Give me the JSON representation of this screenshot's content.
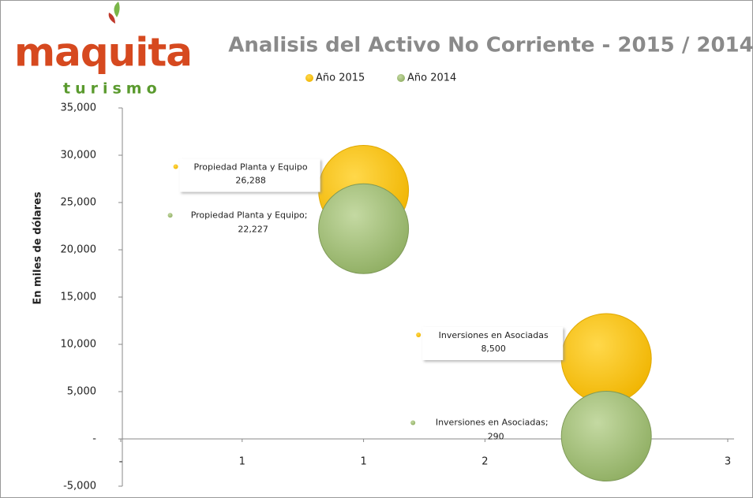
{
  "logo": {
    "name": "maquita",
    "tagline": "turismo"
  },
  "chart_data": {
    "type": "bubble",
    "title": "Analisis del Activo No Corriente  - 2015 / 2014",
    "ylabel": "En miles de dólares",
    "x": [
      1,
      2
    ],
    "series": [
      {
        "name": "Año 2015",
        "color": "#f5c000",
        "values": [
          26288,
          8500
        ],
        "value_labels": [
          "26,288",
          "8,500"
        ],
        "point_labels": [
          "Propiedad  Planta y Equipo",
          "Inversiones en Asociadas"
        ]
      },
      {
        "name": "Año 2014",
        "color": "#a3c07a",
        "values": [
          22227,
          290
        ],
        "value_labels": [
          "22,227",
          "290"
        ],
        "point_labels": [
          "Propiedad  Planta y Equipo;",
          "Inversiones en Asociadas;"
        ]
      }
    ],
    "xlim": [
      0,
      2.5
    ],
    "xticks": [
      {
        "value": 0,
        "label": "-"
      },
      {
        "value": 0.5,
        "label": "1"
      },
      {
        "value": 1,
        "label": "1"
      },
      {
        "value": 1.5,
        "label": "2"
      },
      {
        "value": 2,
        "label": "2"
      },
      {
        "value": 2.5,
        "label": "3"
      }
    ],
    "ylim": [
      -5000,
      35000
    ],
    "yticks": [
      {
        "value": -5000,
        "label": "-5,000"
      },
      {
        "value": 0,
        "label": "-"
      },
      {
        "value": 5000,
        "label": "5,000"
      },
      {
        "value": 10000,
        "label": "10,000"
      },
      {
        "value": 15000,
        "label": "15,000"
      },
      {
        "value": 20000,
        "label": "20,000"
      },
      {
        "value": 25000,
        "label": "25,000"
      },
      {
        "value": 30000,
        "label": "30,000"
      },
      {
        "value": 35000,
        "label": "35,000"
      }
    ],
    "legend": "top"
  }
}
